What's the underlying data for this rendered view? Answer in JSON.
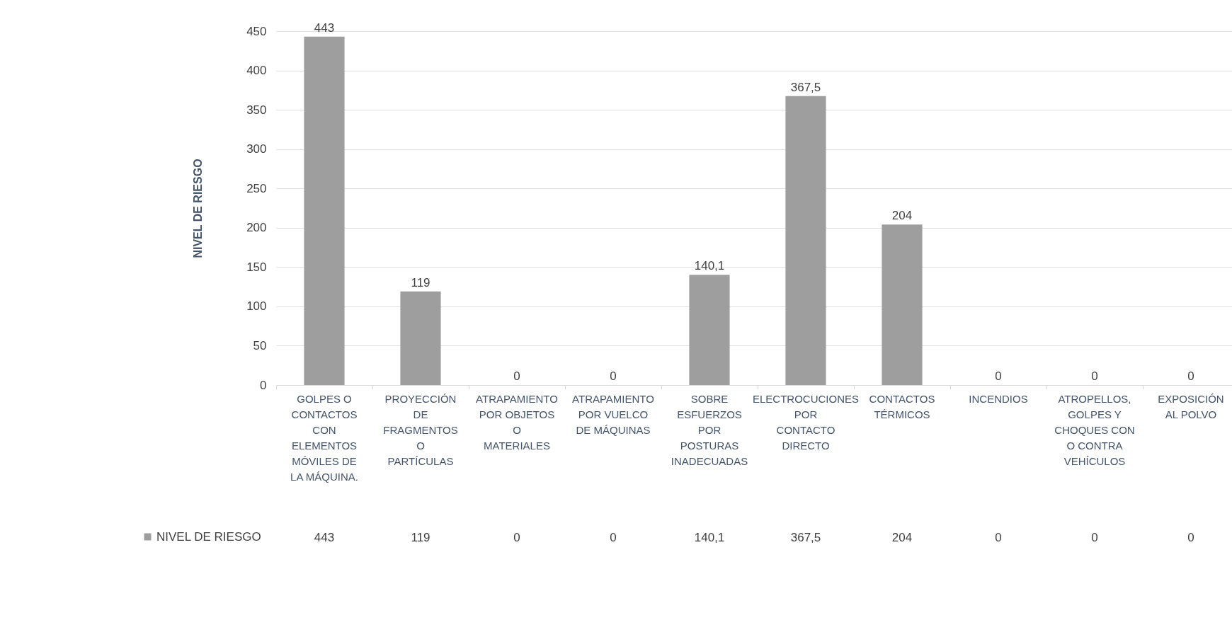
{
  "chart_data": {
    "type": "bar",
    "ylabel": "NIVEL DE RIESGO",
    "categories": [
      "GOLPES O CONTACTOS CON ELEMENTOS MÓVILES DE LA MÁQUINA.",
      "PROYECCIÓN DE FRAGMENTOS O PARTÍCULAS",
      "ATRAPAMIENTO POR OBJETOS O MATERIALES",
      "ATRAPAMIENTO POR VUELCO DE MÁQUINAS",
      "SOBRE ESFUERZOS POR POSTURAS INADECUADAS",
      "ELECTROCUCIONES POR CONTACTO DIRECTO",
      "CONTACTOS TÉRMICOS",
      "INCENDIOS",
      "ATROPELLOS, GOLPES Y CHOQUES CON O CONTRA VEHÍCULOS",
      "EXPOSICIÓN AL POLVO"
    ],
    "series": [
      {
        "name": "NIVEL DE RIESGO",
        "color": "#9e9e9e",
        "values": [
          443,
          119,
          0,
          0,
          140.1,
          367.5,
          204,
          0,
          0,
          0
        ],
        "value_labels": [
          "443",
          "119",
          "0",
          "0",
          "140,1",
          "367,5",
          "204",
          "0",
          "0",
          "0"
        ]
      }
    ],
    "ylim": [
      0,
      450
    ],
    "yticks": [
      0,
      50,
      100,
      150,
      200,
      250,
      300,
      350,
      400,
      450
    ],
    "grid": "y",
    "legend": "bottom left"
  }
}
